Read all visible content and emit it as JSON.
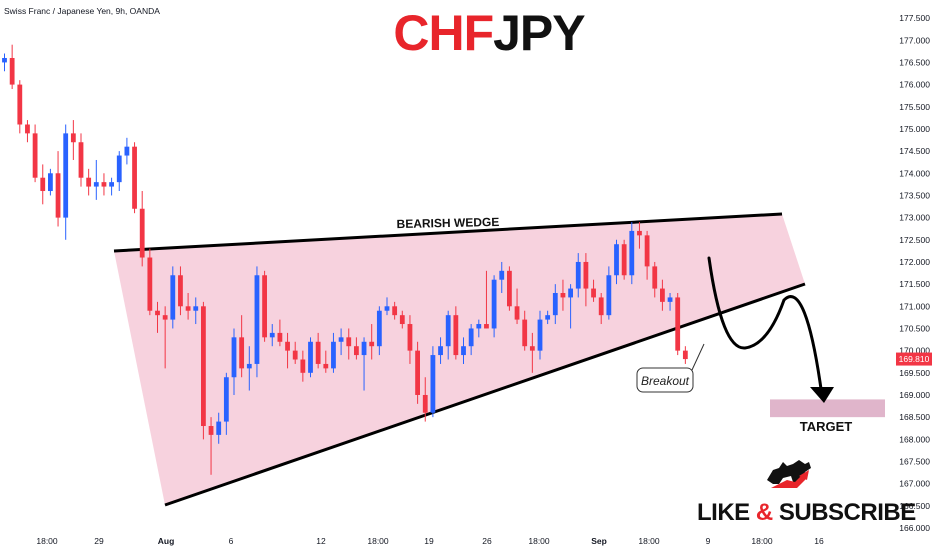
{
  "header": {
    "instrument": "Swiss Franc / Japanese Yen, 9h, OANDA"
  },
  "title": {
    "part1": "CHF",
    "part2": "JPY",
    "part1_color": "#e8252b",
    "part2_color": "#111111"
  },
  "annotations": {
    "wedge_label": "BEARISH WEDGE",
    "breakout_label": "Breakout",
    "target_label": "TARGET"
  },
  "branding": {
    "cta_part1": "LIKE",
    "cta_amp": "&",
    "cta_part2": "SUBSCRIBE",
    "logo_icon": "bull-bear-logo-icon"
  },
  "price_axis": {
    "ticks": [
      "177.500",
      "177.000",
      "176.500",
      "176.000",
      "175.500",
      "175.000",
      "174.500",
      "174.000",
      "173.500",
      "173.000",
      "172.500",
      "172.000",
      "171.500",
      "171.000",
      "170.500",
      "170.000",
      "169.500",
      "169.000",
      "168.500",
      "168.000",
      "167.500",
      "167.000",
      "166.500",
      "166.000"
    ],
    "current_price_label": "169.810",
    "current_price_color": "#f23645"
  },
  "time_axis": {
    "labels": [
      "18:00",
      "29",
      "Aug",
      "6",
      "12",
      "18:00",
      "19",
      "26",
      "18:00",
      "Sep",
      "18:00",
      "9",
      "18:00",
      "16"
    ]
  },
  "colors": {
    "bull": "#2962ff",
    "bear": "#f23645",
    "wedge_fill": "#f5c7d6",
    "target_fill": "#dba8c2"
  },
  "chart_data": {
    "type": "candlestick",
    "ylim": [
      166.0,
      177.75
    ],
    "target_zone": [
      168.5,
      168.9
    ],
    "breakout_close": 169.81,
    "wedge_upper": [
      [
        0,
        172.0
      ],
      [
        92,
        173.0
      ]
    ],
    "wedge_lower": [
      [
        6,
        167.1
      ],
      [
        92,
        171.5
      ]
    ],
    "candles": [
      {
        "o": 176.5,
        "h": 176.7,
        "l": 176.3,
        "c": 176.6
      },
      {
        "o": 176.6,
        "h": 176.9,
        "l": 175.9,
        "c": 176.0
      },
      {
        "o": 176.0,
        "h": 176.1,
        "l": 174.9,
        "c": 175.1
      },
      {
        "o": 175.1,
        "h": 175.2,
        "l": 174.7,
        "c": 174.9
      },
      {
        "o": 174.9,
        "h": 175.1,
        "l": 173.8,
        "c": 173.9
      },
      {
        "o": 173.9,
        "h": 174.2,
        "l": 173.3,
        "c": 173.6
      },
      {
        "o": 173.6,
        "h": 174.1,
        "l": 173.5,
        "c": 174.0
      },
      {
        "o": 174.0,
        "h": 174.5,
        "l": 172.8,
        "c": 173.0
      },
      {
        "o": 173.0,
        "h": 175.1,
        "l": 172.5,
        "c": 174.9
      },
      {
        "o": 174.9,
        "h": 175.2,
        "l": 174.3,
        "c": 174.7
      },
      {
        "o": 174.7,
        "h": 174.9,
        "l": 173.7,
        "c": 173.9
      },
      {
        "o": 173.9,
        "h": 174.1,
        "l": 173.5,
        "c": 173.7
      },
      {
        "o": 173.7,
        "h": 174.3,
        "l": 173.4,
        "c": 173.8
      },
      {
        "o": 173.8,
        "h": 174.0,
        "l": 173.5,
        "c": 173.7
      },
      {
        "o": 173.7,
        "h": 173.9,
        "l": 173.5,
        "c": 173.8
      },
      {
        "o": 173.8,
        "h": 174.5,
        "l": 173.6,
        "c": 174.4
      },
      {
        "o": 174.4,
        "h": 174.8,
        "l": 174.2,
        "c": 174.6
      },
      {
        "o": 174.6,
        "h": 174.7,
        "l": 173.1,
        "c": 173.2
      },
      {
        "o": 173.2,
        "h": 173.6,
        "l": 171.9,
        "c": 172.1
      },
      {
        "o": 172.1,
        "h": 172.3,
        "l": 170.8,
        "c": 170.9
      },
      {
        "o": 170.9,
        "h": 171.1,
        "l": 170.4,
        "c": 170.8
      },
      {
        "o": 170.8,
        "h": 171.0,
        "l": 169.6,
        "c": 170.7
      },
      {
        "o": 170.7,
        "h": 171.9,
        "l": 170.5,
        "c": 171.7
      },
      {
        "o": 171.7,
        "h": 171.9,
        "l": 170.8,
        "c": 171.0
      },
      {
        "o": 171.0,
        "h": 171.3,
        "l": 170.7,
        "c": 170.9
      },
      {
        "o": 170.9,
        "h": 171.2,
        "l": 170.6,
        "c": 171.0
      },
      {
        "o": 171.0,
        "h": 171.1,
        "l": 168.0,
        "c": 168.3
      },
      {
        "o": 168.3,
        "h": 168.5,
        "l": 167.2,
        "c": 168.1
      },
      {
        "o": 168.1,
        "h": 168.6,
        "l": 167.9,
        "c": 168.4
      },
      {
        "o": 168.4,
        "h": 169.5,
        "l": 168.1,
        "c": 169.4
      },
      {
        "o": 169.4,
        "h": 170.5,
        "l": 169.0,
        "c": 170.3
      },
      {
        "o": 170.3,
        "h": 170.8,
        "l": 169.4,
        "c": 169.6
      },
      {
        "o": 169.6,
        "h": 170.1,
        "l": 169.1,
        "c": 169.7
      },
      {
        "o": 169.7,
        "h": 171.9,
        "l": 169.4,
        "c": 171.7
      },
      {
        "o": 171.7,
        "h": 171.8,
        "l": 170.2,
        "c": 170.3
      },
      {
        "o": 170.3,
        "h": 170.6,
        "l": 170.1,
        "c": 170.4
      },
      {
        "o": 170.4,
        "h": 170.7,
        "l": 170.1,
        "c": 170.2
      },
      {
        "o": 170.2,
        "h": 170.4,
        "l": 169.6,
        "c": 170.0
      },
      {
        "o": 170.0,
        "h": 170.2,
        "l": 169.7,
        "c": 169.8
      },
      {
        "o": 169.8,
        "h": 170.0,
        "l": 169.3,
        "c": 169.5
      },
      {
        "o": 169.5,
        "h": 170.3,
        "l": 169.4,
        "c": 170.2
      },
      {
        "o": 170.2,
        "h": 170.4,
        "l": 169.6,
        "c": 169.7
      },
      {
        "o": 169.7,
        "h": 170.0,
        "l": 169.5,
        "c": 169.6
      },
      {
        "o": 169.6,
        "h": 170.4,
        "l": 169.5,
        "c": 170.2
      },
      {
        "o": 170.2,
        "h": 170.5,
        "l": 169.9,
        "c": 170.3
      },
      {
        "o": 170.3,
        "h": 170.5,
        "l": 169.8,
        "c": 170.1
      },
      {
        "o": 170.1,
        "h": 170.3,
        "l": 169.8,
        "c": 169.9
      },
      {
        "o": 169.9,
        "h": 170.3,
        "l": 169.1,
        "c": 170.2
      },
      {
        "o": 170.2,
        "h": 170.6,
        "l": 169.8,
        "c": 170.1
      },
      {
        "o": 170.1,
        "h": 171.0,
        "l": 169.9,
        "c": 170.9
      },
      {
        "o": 170.9,
        "h": 171.2,
        "l": 170.8,
        "c": 171.0
      },
      {
        "o": 171.0,
        "h": 171.1,
        "l": 170.7,
        "c": 170.8
      },
      {
        "o": 170.8,
        "h": 170.9,
        "l": 170.5,
        "c": 170.6
      },
      {
        "o": 170.6,
        "h": 170.8,
        "l": 169.7,
        "c": 170.0
      },
      {
        "o": 170.0,
        "h": 170.2,
        "l": 168.8,
        "c": 169.0
      },
      {
        "o": 169.0,
        "h": 169.4,
        "l": 168.4,
        "c": 168.6
      },
      {
        "o": 168.6,
        "h": 170.1,
        "l": 168.5,
        "c": 169.9
      },
      {
        "o": 169.9,
        "h": 170.3,
        "l": 169.7,
        "c": 170.1
      },
      {
        "o": 170.1,
        "h": 170.9,
        "l": 169.8,
        "c": 170.8
      },
      {
        "o": 170.8,
        "h": 171.0,
        "l": 169.8,
        "c": 169.9
      },
      {
        "o": 169.9,
        "h": 170.3,
        "l": 169.7,
        "c": 170.1
      },
      {
        "o": 170.1,
        "h": 170.6,
        "l": 169.9,
        "c": 170.5
      },
      {
        "o": 170.5,
        "h": 170.7,
        "l": 170.3,
        "c": 170.6
      },
      {
        "o": 170.6,
        "h": 171.8,
        "l": 170.5,
        "c": 170.5
      },
      {
        "o": 170.5,
        "h": 171.7,
        "l": 170.3,
        "c": 171.6
      },
      {
        "o": 171.6,
        "h": 172.0,
        "l": 171.3,
        "c": 171.8
      },
      {
        "o": 171.8,
        "h": 171.9,
        "l": 170.9,
        "c": 171.0
      },
      {
        "o": 171.0,
        "h": 171.4,
        "l": 170.6,
        "c": 170.7
      },
      {
        "o": 170.7,
        "h": 170.9,
        "l": 170.0,
        "c": 170.1
      },
      {
        "o": 170.1,
        "h": 170.4,
        "l": 169.5,
        "c": 170.0
      },
      {
        "o": 170.0,
        "h": 170.9,
        "l": 169.8,
        "c": 170.7
      },
      {
        "o": 170.7,
        "h": 170.9,
        "l": 170.6,
        "c": 170.8
      },
      {
        "o": 170.8,
        "h": 171.5,
        "l": 170.6,
        "c": 171.3
      },
      {
        "o": 171.3,
        "h": 171.6,
        "l": 170.9,
        "c": 171.2
      },
      {
        "o": 171.2,
        "h": 171.5,
        "l": 170.5,
        "c": 171.4
      },
      {
        "o": 171.4,
        "h": 172.2,
        "l": 171.2,
        "c": 172.0
      },
      {
        "o": 172.0,
        "h": 172.2,
        "l": 171.0,
        "c": 171.4
      },
      {
        "o": 171.4,
        "h": 171.6,
        "l": 171.1,
        "c": 171.2
      },
      {
        "o": 171.2,
        "h": 171.3,
        "l": 170.6,
        "c": 170.8
      },
      {
        "o": 170.8,
        "h": 171.9,
        "l": 170.7,
        "c": 171.7
      },
      {
        "o": 171.7,
        "h": 172.5,
        "l": 171.5,
        "c": 172.4
      },
      {
        "o": 172.4,
        "h": 172.5,
        "l": 171.6,
        "c": 171.7
      },
      {
        "o": 171.7,
        "h": 172.9,
        "l": 171.5,
        "c": 172.7
      },
      {
        "o": 172.7,
        "h": 172.9,
        "l": 172.3,
        "c": 172.6
      },
      {
        "o": 172.6,
        "h": 172.7,
        "l": 171.6,
        "c": 171.9
      },
      {
        "o": 171.9,
        "h": 172.0,
        "l": 171.2,
        "c": 171.4
      },
      {
        "o": 171.4,
        "h": 171.6,
        "l": 170.9,
        "c": 171.1
      },
      {
        "o": 171.1,
        "h": 171.3,
        "l": 170.9,
        "c": 171.2
      },
      {
        "o": 171.2,
        "h": 171.3,
        "l": 169.9,
        "c": 170.0
      },
      {
        "o": 170.0,
        "h": 170.1,
        "l": 169.7,
        "c": 169.81
      }
    ]
  }
}
